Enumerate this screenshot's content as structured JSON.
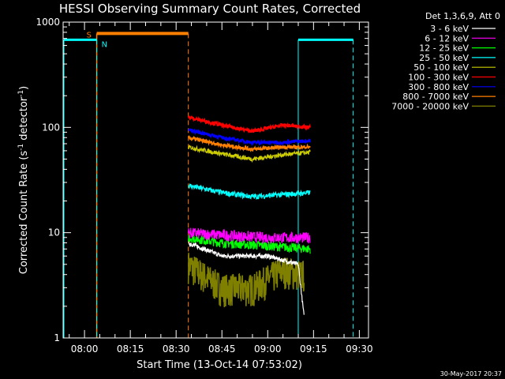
{
  "chart_data": {
    "type": "line",
    "title": "HESSI Observing Summary Count Rates, Corrected",
    "xlabel": "Start Time (13-Oct-14 07:53:02)",
    "ylabel_main": "Corrected Count Rate (s",
    "ylabel_sup1": "-1",
    "ylabel_mid": " detector",
    "ylabel_sup2": "-1",
    "ylabel_end": ")",
    "yscale": "log",
    "ylim": [
      1,
      1000
    ],
    "y_ticks": [
      {
        "value": 1,
        "label": "1"
      },
      {
        "value": 10,
        "label": "10"
      },
      {
        "value": 100,
        "label": "100"
      },
      {
        "value": 1000,
        "label": "1000"
      }
    ],
    "xlim": [
      "07:53",
      "09:33"
    ],
    "x_ticks": [
      {
        "time": "08:00",
        "label": "08:00"
      },
      {
        "time": "08:15",
        "label": "08:15"
      },
      {
        "time": "08:30",
        "label": "08:30"
      },
      {
        "time": "08:45",
        "label": "08:45"
      },
      {
        "time": "09:00",
        "label": "09:00"
      },
      {
        "time": "09:15",
        "label": "09:15"
      },
      {
        "time": "09:30",
        "label": "09:30"
      }
    ],
    "legend_title": "Det 1,3,6,9, Att 0",
    "legend_position": "top-right",
    "data_interval": [
      "08:34",
      "09:14"
    ],
    "series": [
      {
        "name": "3 - 6 keV",
        "color": "#ffffff",
        "points": [
          [
            "08:34",
            8
          ],
          [
            "08:45",
            6
          ],
          [
            "09:00",
            6
          ],
          [
            "09:10",
            5
          ],
          [
            "09:12",
            1.5
          ]
        ]
      },
      {
        "name": "6 - 12 keV",
        "color": "#ff00ff",
        "points": [
          [
            "08:34",
            10
          ],
          [
            "08:45",
            9.5
          ],
          [
            "09:00",
            9
          ],
          [
            "09:14",
            9
          ]
        ]
      },
      {
        "name": "12 - 25 keV",
        "color": "#00ff00",
        "points": [
          [
            "08:34",
            9
          ],
          [
            "08:45",
            8
          ],
          [
            "09:00",
            7.5
          ],
          [
            "09:14",
            7
          ]
        ]
      },
      {
        "name": "25 - 50 keV",
        "color": "#00ffff",
        "points": [
          [
            "08:34",
            28
          ],
          [
            "08:45",
            24
          ],
          [
            "08:55",
            22
          ],
          [
            "09:05",
            23
          ],
          [
            "09:14",
            24
          ]
        ]
      },
      {
        "name": "50 - 100 keV",
        "color": "#cccc00",
        "points": [
          [
            "08:34",
            65
          ],
          [
            "08:45",
            56
          ],
          [
            "08:55",
            50
          ],
          [
            "09:05",
            55
          ],
          [
            "09:14",
            58
          ]
        ]
      },
      {
        "name": "100 - 300 keV",
        "color": "#ff0000",
        "points": [
          [
            "08:34",
            125
          ],
          [
            "08:45",
            105
          ],
          [
            "08:55",
            92
          ],
          [
            "09:05",
            105
          ],
          [
            "09:14",
            100
          ]
        ]
      },
      {
        "name": "300 - 800 keV",
        "color": "#0000ff",
        "points": [
          [
            "08:34",
            95
          ],
          [
            "08:45",
            80
          ],
          [
            "08:55",
            72
          ],
          [
            "09:05",
            72
          ],
          [
            "09:14",
            75
          ]
        ]
      },
      {
        "name": "800 - 7000 keV",
        "color": "#ff8000",
        "points": [
          [
            "08:34",
            80
          ],
          [
            "08:45",
            68
          ],
          [
            "08:55",
            62
          ],
          [
            "09:05",
            65
          ],
          [
            "09:14",
            65
          ]
        ]
      },
      {
        "name": "7000 - 20000 keV",
        "color": "#808000",
        "points": [
          [
            "08:34",
            5
          ],
          [
            "08:45",
            3
          ],
          [
            "08:55",
            3
          ],
          [
            "09:05",
            4.5
          ],
          [
            "09:12",
            4
          ]
        ]
      }
    ],
    "annotations": [
      {
        "label": "S",
        "color": "#ff8000"
      },
      {
        "label": "N",
        "color": "#00ffff"
      }
    ],
    "saa_intervals": [
      [
        "07:53",
        "08:04"
      ],
      [
        "09:10",
        "09:28"
      ]
    ],
    "night_interval": [
      "08:04",
      "08:34"
    ],
    "datestamp": "30-May-2017 20:37"
  }
}
